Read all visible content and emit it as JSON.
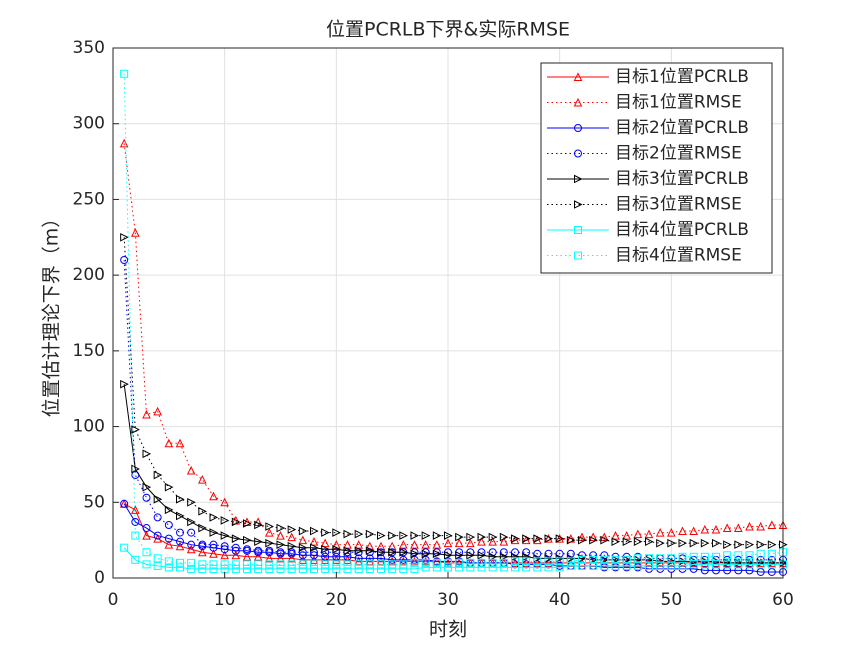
{
  "chart_data": {
    "type": "line",
    "title": "位置PCRLB下界&实际RMSE",
    "x_label": "时刻",
    "y_label": "位置估计理论下界（m）",
    "x": [
      1,
      2,
      3,
      4,
      5,
      6,
      7,
      8,
      9,
      10,
      11,
      12,
      13,
      14,
      15,
      16,
      17,
      18,
      19,
      20,
      21,
      22,
      23,
      24,
      25,
      26,
      27,
      28,
      29,
      30,
      31,
      32,
      33,
      34,
      35,
      36,
      37,
      38,
      39,
      40,
      41,
      42,
      43,
      44,
      45,
      46,
      47,
      48,
      49,
      50,
      51,
      52,
      53,
      54,
      55,
      56,
      57,
      58,
      59,
      60
    ],
    "xlim": [
      0,
      60
    ],
    "xticks": [
      0,
      10,
      20,
      30,
      40,
      50,
      60
    ],
    "ylim": [
      0,
      350
    ],
    "yticks": [
      0,
      50,
      100,
      150,
      200,
      250,
      300,
      350
    ],
    "grid": true,
    "legend": "upper right",
    "series": [
      {
        "name": "目标1位置PCRLB",
        "color": "#ff0000",
        "line_style": "solid",
        "marker": "^",
        "values": [
          49,
          45,
          28,
          26,
          22,
          21,
          19,
          17,
          16,
          15,
          15,
          14,
          14,
          13,
          13,
          13,
          12,
          12,
          12,
          12,
          12,
          11,
          11,
          11,
          11,
          11,
          11,
          11,
          11,
          10,
          10,
          10,
          10,
          10,
          10,
          10,
          10,
          10,
          10,
          10,
          10,
          10,
          10,
          10,
          10,
          10,
          10,
          10,
          10,
          10,
          10,
          10,
          10,
          10,
          10,
          10,
          10,
          10,
          10,
          10
        ]
      },
      {
        "name": "目标1位置RMSE",
        "color": "#ff0000",
        "line_style": "dotted",
        "marker": "^",
        "values": [
          287,
          228,
          108,
          110,
          89,
          89,
          71,
          65,
          54,
          50,
          38,
          37,
          37,
          30,
          28,
          27,
          25,
          24,
          23,
          22,
          22,
          22,
          21,
          21,
          21,
          22,
          22,
          22,
          22,
          23,
          23,
          23,
          24,
          24,
          24,
          25,
          25,
          25,
          26,
          26,
          26,
          27,
          27,
          27,
          28,
          28,
          29,
          29,
          30,
          30,
          31,
          31,
          32,
          32,
          33,
          33,
          34,
          34,
          35,
          35
        ]
      },
      {
        "name": "目标2位置PCRLB",
        "color": "#0000ff",
        "line_style": "solid",
        "marker": "o",
        "values": [
          49,
          37,
          33,
          28,
          26,
          24,
          22,
          21,
          20,
          19,
          18,
          18,
          17,
          17,
          16,
          16,
          15,
          15,
          14,
          14,
          14,
          13,
          13,
          13,
          12,
          12,
          12,
          12,
          11,
          11,
          11,
          10,
          10,
          10,
          10,
          9,
          9,
          9,
          9,
          8,
          8,
          8,
          8,
          7,
          7,
          7,
          7,
          6,
          6,
          6,
          6,
          6,
          5,
          5,
          5,
          5,
          5,
          4,
          4,
          4
        ]
      },
      {
        "name": "目标2位置RMSE",
        "color": "#0000ff",
        "line_style": "dotted",
        "marker": "o",
        "values": [
          210,
          68,
          53,
          40,
          35,
          30,
          30,
          22,
          22,
          21,
          20,
          19,
          18,
          18,
          17,
          17,
          17,
          17,
          17,
          17,
          17,
          17,
          17,
          17,
          17,
          17,
          17,
          17,
          17,
          17,
          17,
          17,
          17,
          17,
          17,
          17,
          17,
          16,
          16,
          16,
          16,
          15,
          15,
          15,
          14,
          14,
          14,
          13,
          13,
          13,
          13,
          12,
          12,
          12,
          12,
          12,
          12,
          12,
          12,
          12
        ]
      },
      {
        "name": "目标3位置PCRLB",
        "color": "#000000",
        "line_style": "solid",
        "marker": ">",
        "values": [
          128,
          72,
          60,
          52,
          45,
          41,
          37,
          33,
          30,
          28,
          26,
          25,
          24,
          23,
          22,
          21,
          20,
          20,
          19,
          19,
          18,
          18,
          18,
          17,
          17,
          17,
          16,
          16,
          16,
          15,
          15,
          15,
          15,
          14,
          14,
          14,
          14,
          13,
          13,
          13,
          13,
          13,
          12,
          12,
          12,
          12,
          12,
          12,
          11,
          11,
          11,
          11,
          11,
          11,
          10,
          10,
          10,
          10,
          10,
          10
        ]
      },
      {
        "name": "目标3位置RMSE",
        "color": "#000000",
        "line_style": "dotted",
        "marker": ">",
        "values": [
          225,
          98,
          82,
          68,
          60,
          52,
          50,
          44,
          40,
          38,
          37,
          36,
          35,
          34,
          33,
          32,
          31,
          31,
          30,
          30,
          29,
          29,
          29,
          28,
          28,
          28,
          28,
          28,
          28,
          28,
          27,
          27,
          27,
          27,
          27,
          26,
          26,
          26,
          26,
          26,
          25,
          25,
          25,
          25,
          24,
          24,
          24,
          24,
          23,
          23,
          23,
          23,
          23,
          23,
          22,
          22,
          22,
          22,
          22,
          22
        ]
      },
      {
        "name": "目标4位置PCRLB",
        "color": "#00ffff",
        "line_style": "solid",
        "marker": "s",
        "values": [
          20,
          12,
          9,
          8,
          7,
          7,
          6,
          6,
          6,
          6,
          6,
          6,
          6,
          6,
          6,
          6,
          6,
          6,
          6,
          6,
          6,
          6,
          6,
          6,
          6,
          6,
          6,
          7,
          7,
          7,
          7,
          7,
          7,
          7,
          7,
          7,
          7,
          7,
          7,
          7,
          8,
          8,
          8,
          8,
          8,
          8,
          8,
          8,
          8,
          8,
          8,
          9,
          9,
          9,
          9,
          9,
          9,
          9,
          9,
          9
        ]
      },
      {
        "name": "目标4位置RMSE",
        "color": "#00ffff",
        "line_style": "dotted",
        "marker": "s",
        "values": [
          333,
          28,
          17,
          13,
          11,
          10,
          10,
          9,
          9,
          9,
          9,
          9,
          9,
          9,
          9,
          9,
          9,
          9,
          9,
          9,
          9,
          9,
          9,
          9,
          9,
          9,
          10,
          10,
          10,
          10,
          10,
          10,
          10,
          10,
          10,
          11,
          11,
          11,
          11,
          11,
          11,
          12,
          12,
          12,
          12,
          12,
          13,
          13,
          13,
          13,
          14,
          14,
          14,
          14,
          15,
          15,
          15,
          16,
          16,
          17
        ]
      }
    ]
  }
}
